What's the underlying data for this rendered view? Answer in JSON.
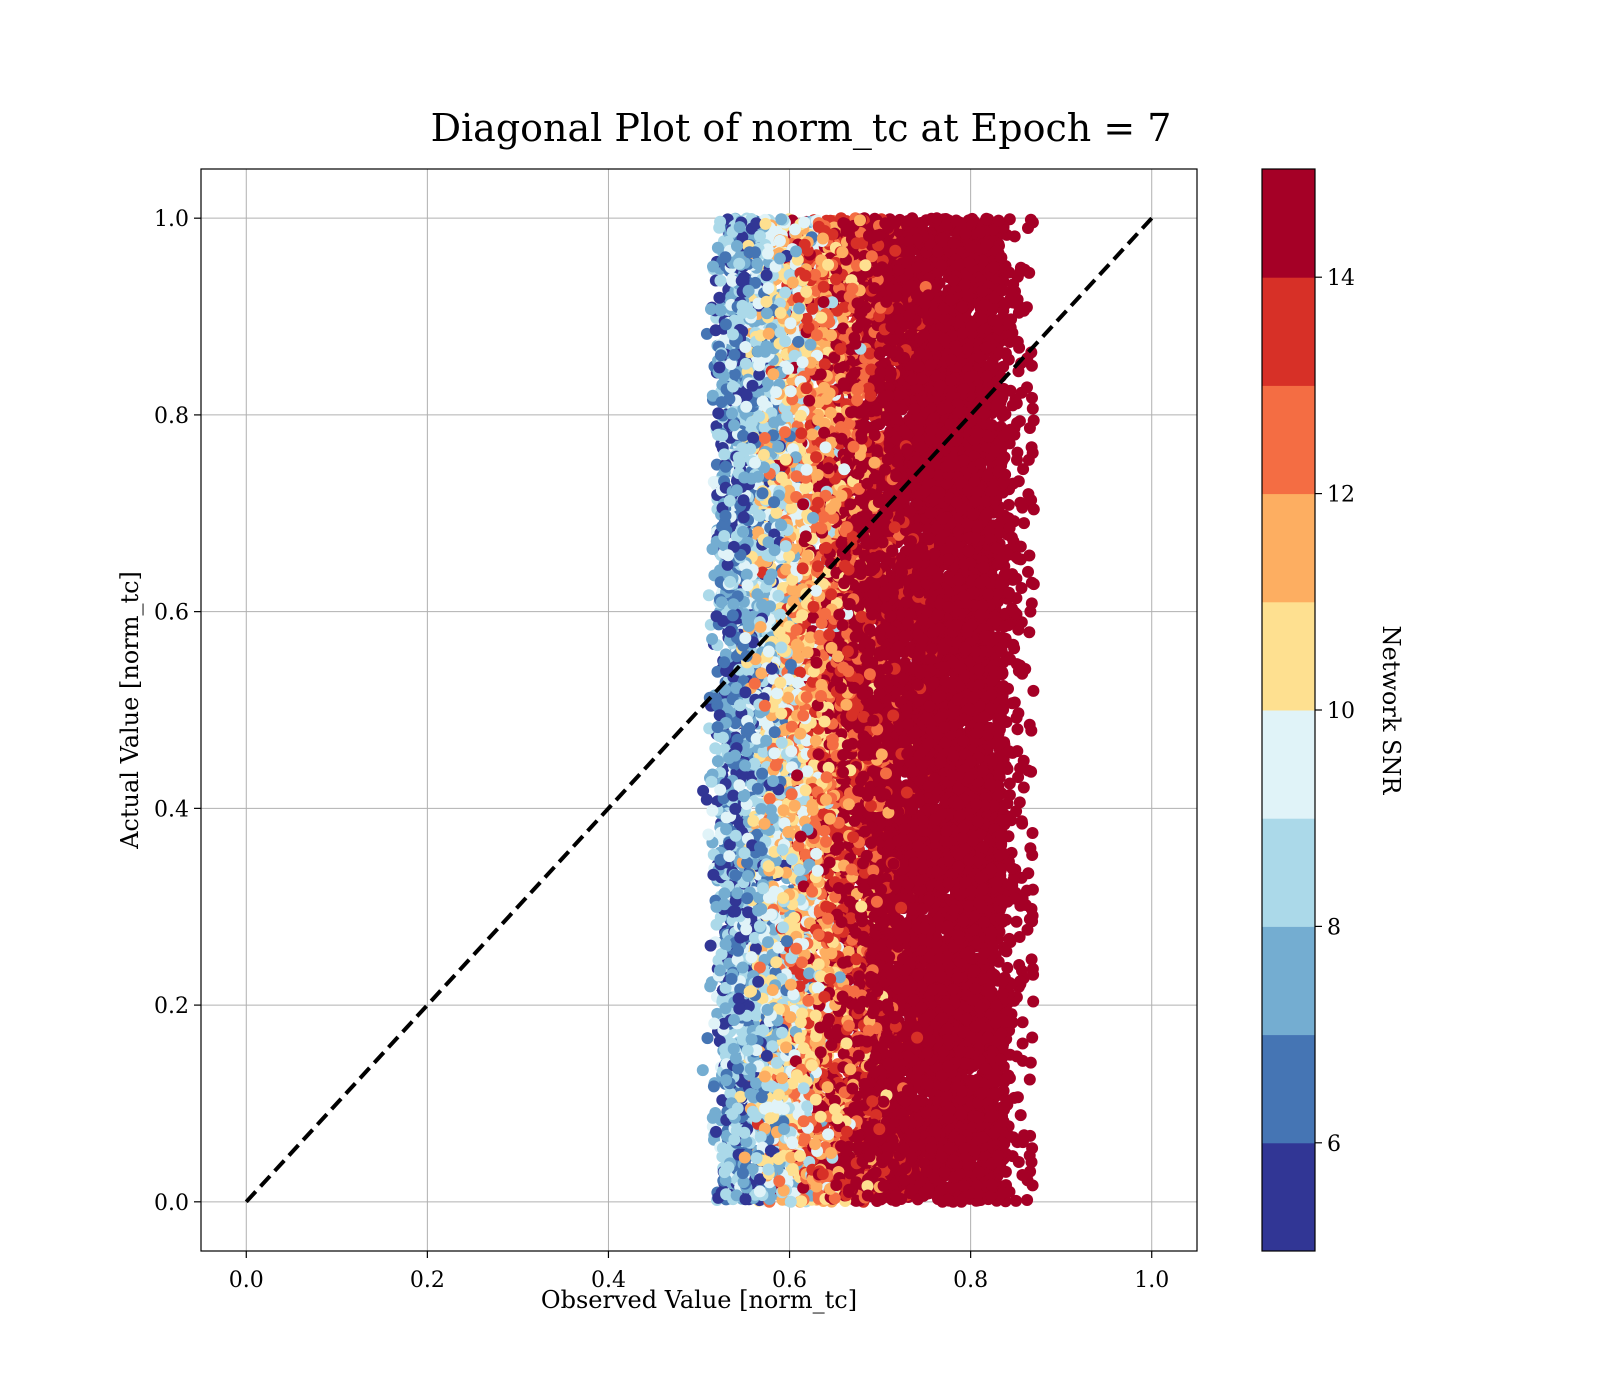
{
  "chart_data": {
    "type": "scatter",
    "title": "Diagonal Plot of norm_tc at Epoch = 7",
    "xlabel": "Observed Value [norm_tc]",
    "ylabel": "Actual Value [norm_tc]",
    "xlim": [
      -0.05,
      1.05
    ],
    "ylim": [
      -0.05,
      1.05
    ],
    "xticks": [
      "0.0",
      "0.2",
      "0.4",
      "0.6",
      "0.8",
      "1.0"
    ],
    "yticks": [
      "0.0",
      "0.2",
      "0.4",
      "0.6",
      "0.8",
      "1.0"
    ],
    "grid": true,
    "reference_line": {
      "x": [
        0,
        1
      ],
      "y": [
        0,
        1
      ],
      "style": "dashed",
      "color": "#000000"
    },
    "point_cloud": {
      "x_range": [
        0.51,
        0.87
      ],
      "y_range": [
        0.0,
        1.0
      ],
      "color_trend": "SNR increases with observed value; low SNR near 0.52, high SNR near 0.70-0.85"
    },
    "colorbar": {
      "label": "Network SNR",
      "range": [
        5,
        15
      ],
      "ticks": [
        "6",
        "8",
        "10",
        "12",
        "14"
      ],
      "colormap": [
        "#313695",
        "#4575b4",
        "#74add1",
        "#abd9e9",
        "#e0f3f8",
        "#fee090",
        "#fdae61",
        "#f46d43",
        "#d73027",
        "#a50026"
      ],
      "levels": 10
    }
  }
}
